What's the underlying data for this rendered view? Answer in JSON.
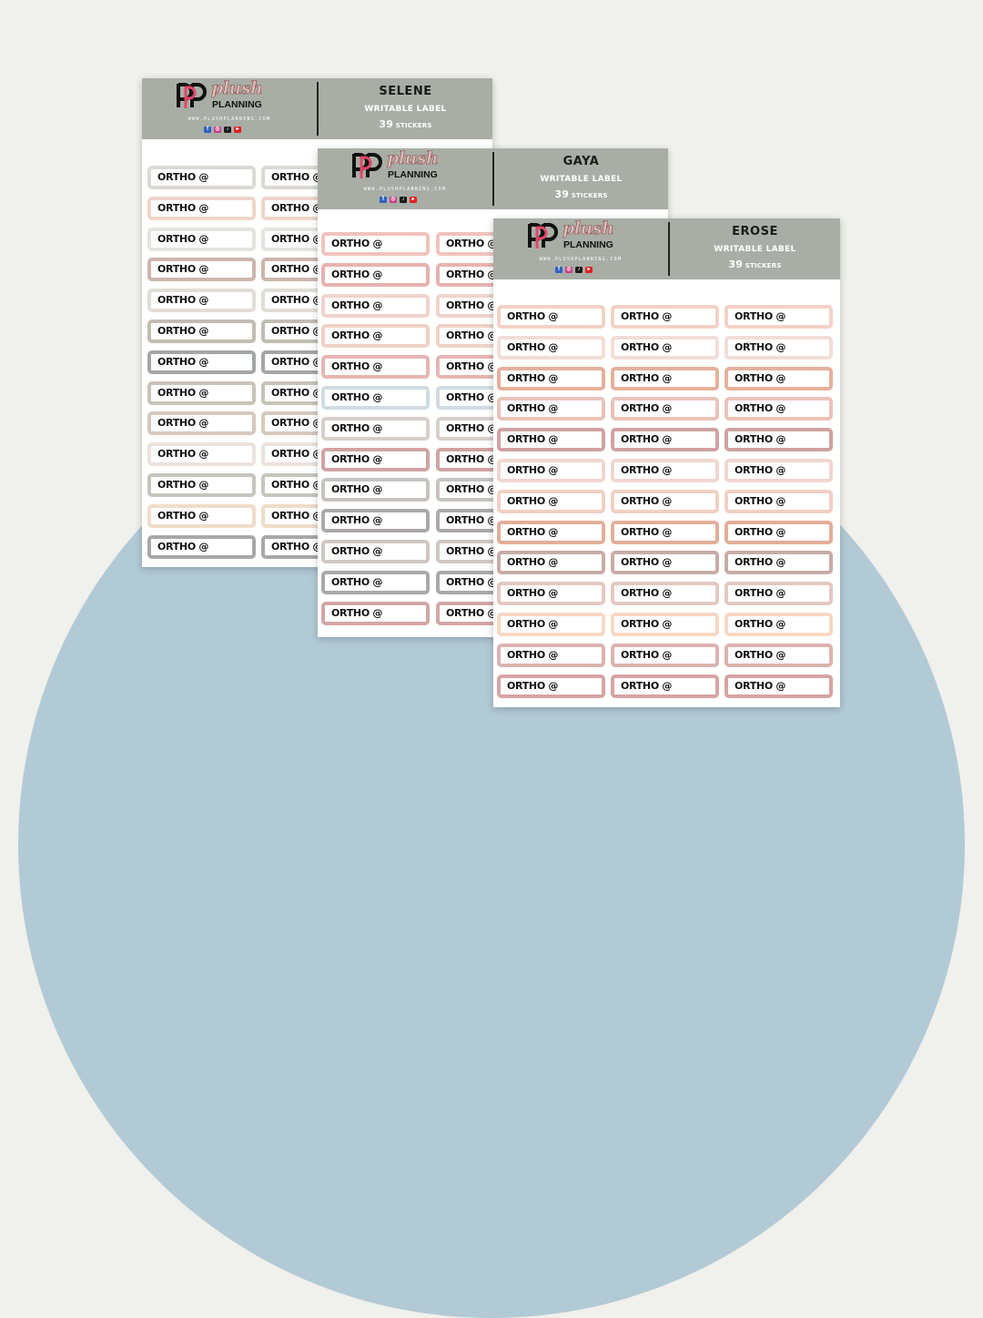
{
  "brand": {
    "plush": "plush",
    "planning": "PLANNING",
    "website": "WWW.PLUSHPLANNING.COM"
  },
  "sticker_text": "ORTHO @",
  "sheets": [
    {
      "name": "SELENE",
      "type": "WRITABLE LABEL",
      "count_number": "39",
      "count_unit": "STICKERS",
      "row_colors": [
        "#dcd9d4",
        "#efd5c8",
        "#e6e3df",
        "#cdb5ac",
        "#e1ddd8",
        "#c0bdb0",
        "#a3a6a7",
        "#c8c3b6",
        "#d5c8bb",
        "#ece2dd",
        "#c7c5bc",
        "#f0dcc8",
        "#a8a8a8"
      ]
    },
    {
      "name": "GAYA",
      "type": "WRITABLE LABEL",
      "count_number": "39",
      "count_unit": "STICKERS",
      "row_colors": [
        "#f0c3bb",
        "#e8b2b0",
        "#f0d3cc",
        "#f0d2c6",
        "#e7b6b2",
        "#d0dbe3",
        "#d7cfcc",
        "#d2a3a3",
        "#c8c3c0",
        "#ada9a7",
        "#cfc7c2",
        "#a9a9a9",
        "#d4a6a6"
      ]
    },
    {
      "name": "EROSE",
      "type": "WRITABLE LABEL",
      "count_number": "39",
      "count_unit": "STICKERS",
      "row_colors": [
        "#f3d2c6",
        "#f3ddd6",
        "#e6b09c",
        "#e9c3ba",
        "#cfa3a0",
        "#f1d5cf",
        "#f2cfc5",
        "#e2ae98",
        "#c8aca6",
        "#e5c8c2",
        "#f7d8c3",
        "#dcb3ad",
        "#d6a4a2"
      ]
    }
  ]
}
